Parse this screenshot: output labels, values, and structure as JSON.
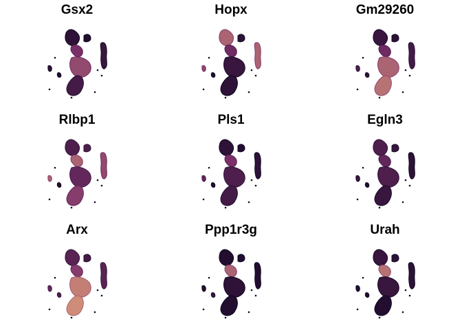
{
  "chart_data": [
    {
      "type": "scatter",
      "title": "Gsx2",
      "region_expression": {
        "top_left_blob": 0.15,
        "small_top_right": 0.1,
        "central_top": 0.5,
        "central_mid": 0.6,
        "central_bottom": 0.25,
        "far_left": 0.15,
        "far_right": 0.2,
        "bottom_blob": 0.1
      }
    },
    {
      "type": "scatter",
      "title": "Hopx",
      "region_expression": {
        "top_left_blob": 0.7,
        "small_top_right": 0.15,
        "central_top": 0.45,
        "central_mid": 0.2,
        "central_bottom": 0.15,
        "far_left": 0.6,
        "far_right": 0.7,
        "bottom_blob": 0.1
      }
    },
    {
      "type": "scatter",
      "title": "Gm29260",
      "region_expression": {
        "top_left_blob": 0.2,
        "small_top_right": 0.15,
        "central_top": 0.45,
        "central_mid": 0.7,
        "central_bottom": 0.75,
        "far_left": 0.3,
        "far_right": 0.25,
        "bottom_blob": 0.15
      }
    },
    {
      "type": "scatter",
      "title": "Rlbp1",
      "region_expression": {
        "top_left_blob": 0.3,
        "small_top_right": 0.3,
        "central_top": 0.7,
        "central_mid": 0.4,
        "central_bottom": 0.55,
        "far_left": 0.7,
        "far_right": 0.6,
        "bottom_blob": 0.1
      }
    },
    {
      "type": "scatter",
      "title": "Pls1",
      "region_expression": {
        "top_left_blob": 0.15,
        "small_top_right": 0.1,
        "central_top": 0.5,
        "central_mid": 0.3,
        "central_bottom": 0.25,
        "far_left": 0.4,
        "far_right": 0.15,
        "bottom_blob": 0.1
      }
    },
    {
      "type": "scatter",
      "title": "Egln3",
      "region_expression": {
        "top_left_blob": 0.3,
        "small_top_right": 0.2,
        "central_top": 0.4,
        "central_mid": 0.3,
        "central_bottom": 0.2,
        "far_left": 0.2,
        "far_right": 0.15,
        "bottom_blob": 0.1
      }
    },
    {
      "type": "scatter",
      "title": "Arx",
      "region_expression": {
        "top_left_blob": 0.35,
        "small_top_right": 0.25,
        "central_top": 0.55,
        "central_mid": 0.8,
        "central_bottom": 0.85,
        "far_left": 0.4,
        "far_right": 0.35,
        "bottom_blob": 0.3
      }
    },
    {
      "type": "scatter",
      "title": "Ppp1r3g",
      "region_expression": {
        "top_left_blob": 0.1,
        "small_top_right": 0.1,
        "central_top": 0.7,
        "central_mid": 0.15,
        "central_bottom": 0.1,
        "far_left": 0.1,
        "far_right": 0.1,
        "bottom_blob": 0.2
      }
    },
    {
      "type": "scatter",
      "title": "Urah",
      "region_expression": {
        "top_left_blob": 0.2,
        "small_top_right": 0.15,
        "central_top": 0.75,
        "central_mid": 0.2,
        "central_bottom": 0.1,
        "far_left": 0.1,
        "far_right": 0.15,
        "bottom_blob": 0.1
      }
    }
  ],
  "colors": {
    "low": "#0d0621",
    "mid": "#7a2f6a",
    "high": "#f4b47e"
  }
}
